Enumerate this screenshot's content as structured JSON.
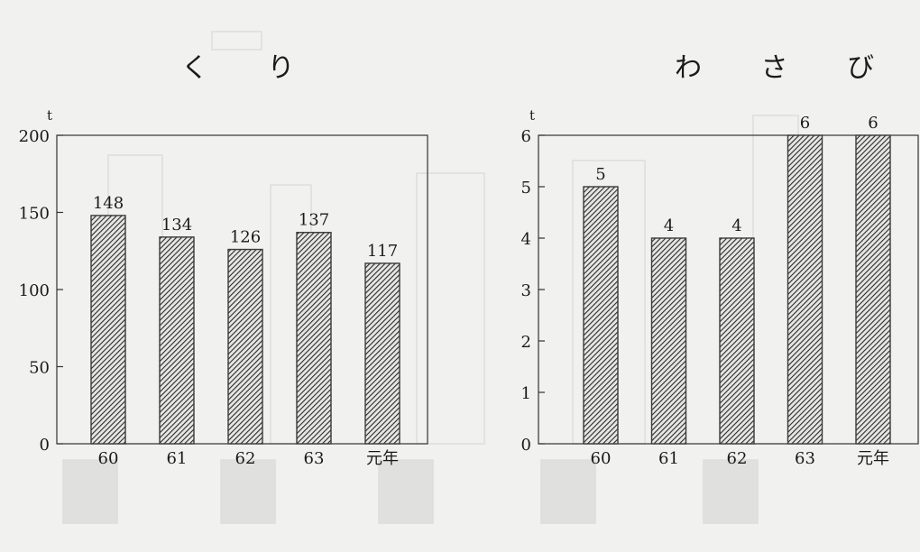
{
  "chart_data": [
    {
      "type": "bar",
      "title": "く り",
      "ylabel": "t",
      "categories": [
        "60",
        "61",
        "62",
        "63",
        "元年"
      ],
      "values": [
        148,
        134,
        126,
        137,
        117
      ],
      "ylim": [
        0,
        200
      ],
      "yticks": [
        0,
        50,
        100,
        150,
        200
      ],
      "bar_color": "#3a3a3a",
      "grid": false,
      "legend": "none"
    },
    {
      "type": "bar",
      "title": "わ さ び",
      "ylabel": "t",
      "categories": [
        "60",
        "61",
        "62",
        "63",
        "元年"
      ],
      "values": [
        5,
        4,
        4,
        6,
        6
      ],
      "ylim": [
        0,
        6
      ],
      "yticks": [
        0,
        1,
        2,
        3,
        4,
        5,
        6
      ],
      "bar_color": "#3a3a3a",
      "grid": false,
      "legend": "none"
    }
  ]
}
